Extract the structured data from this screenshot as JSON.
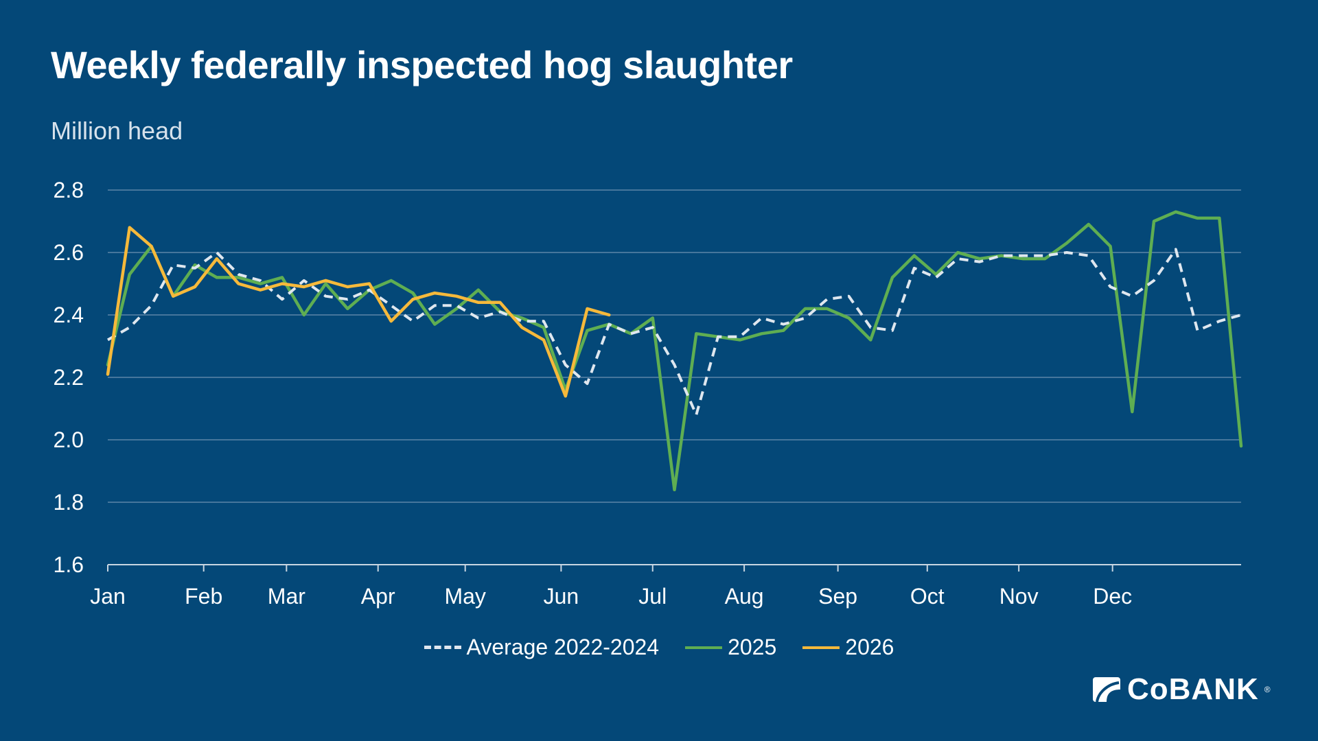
{
  "title": "Weekly federally inspected hog slaughter",
  "subtitle": "Million head",
  "legend": {
    "avg": "Average 2022-2024",
    "y2025": "2025",
    "y2026": "2026"
  },
  "logo": {
    "text": "CoBANK",
    "mark": "®"
  },
  "colors": {
    "background": "#044878",
    "avg": "#dfe7ef",
    "y2025": "#5fae52",
    "y2026": "#f6b93b"
  },
  "chart_data": {
    "type": "line",
    "x_unit": "week of year",
    "x_tick_labels": [
      "Jan",
      "Feb",
      "Mar",
      "Apr",
      "May",
      "Jun",
      "Jul",
      "Aug",
      "Sep",
      "Oct",
      "Nov",
      "Dec"
    ],
    "x_tick_weeks": [
      1,
      5.4,
      9.2,
      13.4,
      17.4,
      21.8,
      26,
      30.2,
      34.5,
      38.6,
      42.8,
      47.1
    ],
    "xlim": [
      1,
      53
    ],
    "y_ticks": [
      "1.6",
      "1.8",
      "2.0",
      "2.2",
      "2.4",
      "2.6",
      "2.8"
    ],
    "ylim": [
      1.6,
      2.8
    ],
    "grid": true,
    "legend_position": "bottom",
    "series": [
      {
        "name": "Average 2022-2024",
        "style": "dashed",
        "x": [
          1,
          2,
          3,
          4,
          5,
          6,
          7,
          8,
          9,
          10,
          11,
          12,
          13,
          14,
          15,
          16,
          17,
          18,
          19,
          20,
          21,
          22,
          23,
          24,
          25,
          26,
          27,
          28,
          29,
          30,
          31,
          32,
          33,
          34,
          35,
          36,
          37,
          38,
          39,
          40,
          41,
          42,
          43,
          44,
          45,
          46,
          47,
          48,
          49,
          50,
          51,
          52,
          53
        ],
        "values": [
          2.32,
          2.36,
          2.43,
          2.56,
          2.55,
          2.6,
          2.53,
          2.51,
          2.45,
          2.51,
          2.46,
          2.45,
          2.48,
          2.43,
          2.38,
          2.43,
          2.43,
          2.39,
          2.41,
          2.38,
          2.38,
          2.24,
          2.18,
          2.37,
          2.34,
          2.36,
          2.24,
          2.08,
          2.33,
          2.33,
          2.39,
          2.37,
          2.39,
          2.45,
          2.46,
          2.36,
          2.35,
          2.55,
          2.52,
          2.58,
          2.57,
          2.59,
          2.59,
          2.59,
          2.6,
          2.59,
          2.49,
          2.46,
          2.51,
          2.61,
          2.35,
          2.38,
          2.4
        ]
      },
      {
        "name": "2025",
        "style": "solid",
        "x": [
          1,
          2,
          3,
          4,
          5,
          6,
          7,
          8,
          9,
          10,
          11,
          12,
          13,
          14,
          15,
          16,
          17,
          18,
          19,
          20,
          21,
          22,
          23,
          24,
          25,
          26,
          27,
          28,
          29,
          30,
          31,
          32,
          33,
          34,
          35,
          36,
          37,
          38,
          39,
          40,
          41,
          42,
          43,
          44,
          45,
          46,
          47,
          48,
          49,
          50,
          51,
          52,
          53
        ],
        "values": [
          2.24,
          2.53,
          2.62,
          2.46,
          2.56,
          2.52,
          2.52,
          2.5,
          2.52,
          2.4,
          2.5,
          2.42,
          2.48,
          2.51,
          2.47,
          2.37,
          2.42,
          2.48,
          2.41,
          2.39,
          2.36,
          2.16,
          2.35,
          2.37,
          2.34,
          2.39,
          1.84,
          2.34,
          2.33,
          2.32,
          2.34,
          2.35,
          2.42,
          2.42,
          2.39,
          2.32,
          2.52,
          2.59,
          2.53,
          2.6,
          2.58,
          2.59,
          2.58,
          2.58,
          2.63,
          2.69,
          2.62,
          2.09,
          2.7,
          2.73,
          2.71,
          2.71,
          1.98
        ]
      },
      {
        "name": "2026",
        "style": "solid",
        "x": [
          1,
          2,
          3,
          4,
          5,
          6,
          7,
          8,
          9,
          10,
          11,
          12,
          13,
          14,
          15,
          16,
          17,
          18,
          19,
          20,
          21,
          22,
          23,
          24
        ],
        "values": [
          2.21,
          2.68,
          2.62,
          2.46,
          2.49,
          2.58,
          2.5,
          2.48,
          2.5,
          2.49,
          2.51,
          2.49,
          2.5,
          2.38,
          2.45,
          2.47,
          2.46,
          2.44,
          2.44,
          2.36,
          2.32,
          2.14,
          2.42,
          2.4
        ]
      }
    ]
  }
}
